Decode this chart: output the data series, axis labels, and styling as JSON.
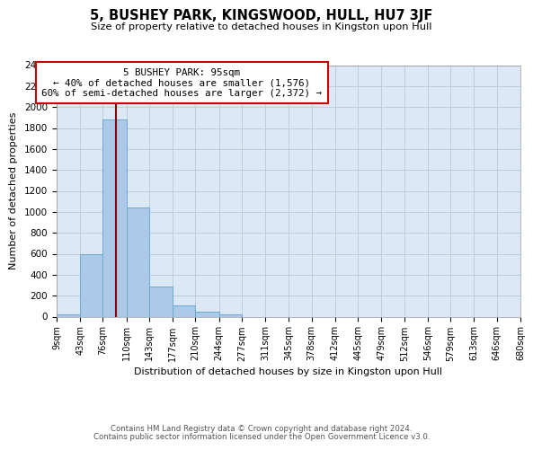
{
  "title": "5, BUSHEY PARK, KINGSWOOD, HULL, HU7 3JF",
  "subtitle": "Size of property relative to detached houses in Kingston upon Hull",
  "xlabel": "Distribution of detached houses by size in Kingston upon Hull",
  "ylabel": "Number of detached properties",
  "bar_edges": [
    9,
    43,
    76,
    110,
    143,
    177,
    210,
    244,
    277,
    311,
    345,
    378,
    412,
    445,
    479,
    512,
    546,
    579,
    613,
    646,
    680
  ],
  "bar_heights": [
    20,
    600,
    1880,
    1040,
    290,
    110,
    45,
    20,
    0,
    0,
    0,
    0,
    0,
    0,
    0,
    0,
    0,
    0,
    0,
    0
  ],
  "bar_color": "#adc9e8",
  "bar_edgecolor": "#6aaad4",
  "property_line_x": 95,
  "property_line_color": "#8b0000",
  "annotation_title": "5 BUSHEY PARK: 95sqm",
  "annotation_line1": "← 40% of detached houses are smaller (1,576)",
  "annotation_line2": "60% of semi-detached houses are larger (2,372) →",
  "annotation_box_color": "#ffffff",
  "annotation_box_edgecolor": "#cc0000",
  "ylim": [
    0,
    2400
  ],
  "yticks": [
    0,
    200,
    400,
    600,
    800,
    1000,
    1200,
    1400,
    1600,
    1800,
    2000,
    2200,
    2400
  ],
  "xtick_labels": [
    "9sqm",
    "43sqm",
    "76sqm",
    "110sqm",
    "143sqm",
    "177sqm",
    "210sqm",
    "244sqm",
    "277sqm",
    "311sqm",
    "345sqm",
    "378sqm",
    "412sqm",
    "445sqm",
    "479sqm",
    "512sqm",
    "546sqm",
    "579sqm",
    "613sqm",
    "646sqm",
    "680sqm"
  ],
  "footer_line1": "Contains HM Land Registry data © Crown copyright and database right 2024.",
  "footer_line2": "Contains public sector information licensed under the Open Government Licence v3.0.",
  "bg_color": "#ffffff",
  "plot_bg_color": "#dce8f5",
  "grid_color": "#b8cfe0",
  "fig_width": 6.0,
  "fig_height": 5.0,
  "dpi": 100
}
